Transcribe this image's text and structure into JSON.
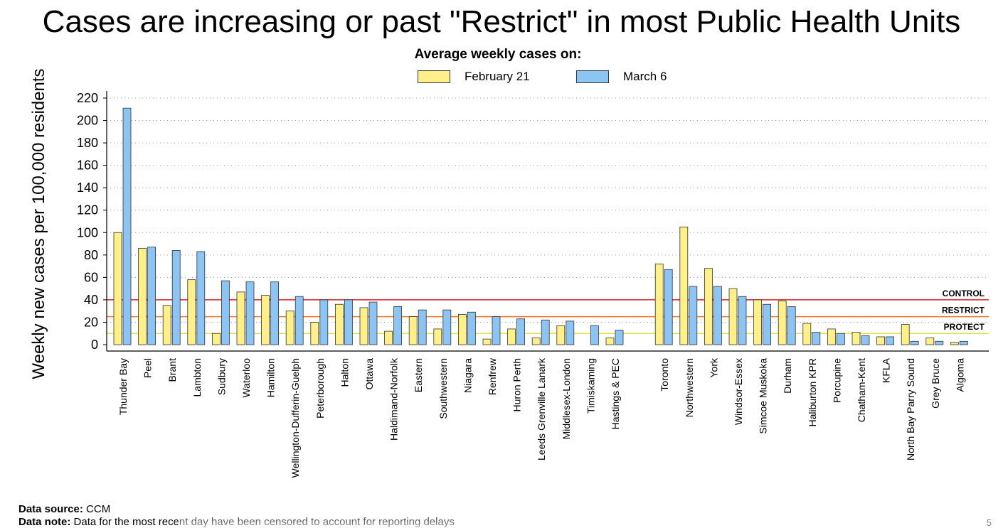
{
  "slide": {
    "title": "Cases are increasing or past \"Restrict\" in most Public Health Units",
    "page_number": "5"
  },
  "legend": {
    "title": "Average weekly cases on:",
    "items": [
      {
        "label": "February 21",
        "color": "#FFF08A"
      },
      {
        "label": "March 6",
        "color": "#8CC4F4"
      }
    ]
  },
  "footer": {
    "source_label": "Data source:",
    "source_value": "CCM",
    "note_label": "Data note:",
    "note_value": "Data for the most recent day have been censored to account for reporting delays"
  },
  "chart_data": {
    "type": "bar",
    "title": "Cases are increasing or past \"Restrict\" in most Public Health Units",
    "ylabel": "Weekly new cases per 100,000 residents",
    "xlabel": "",
    "ylim": [
      0,
      220
    ],
    "yticks": [
      0,
      20,
      40,
      60,
      80,
      100,
      120,
      140,
      160,
      180,
      200,
      220
    ],
    "grid": "dotted horizontal",
    "legend_position": "top-center",
    "categories": [
      "Thunder Bay",
      "Peel",
      "Brant",
      "Lambton",
      "Sudbury",
      "Waterloo",
      "Hamilton",
      "Wellington-Dufferin-Guelph",
      "Peterborough",
      "Halton",
      "Ottawa",
      "Haldimand-Norfolk",
      "Eastern",
      "Southwestern",
      "Niagara",
      "Renfrew",
      "Huron Perth",
      "Leeds Grenville Lanark",
      "Middlesex-London",
      "Timiskaming",
      "Hastings & PEC",
      "Toronto",
      "Northwestern",
      "York",
      "Windsor-Essex",
      "Simcoe Muskoka",
      "Durham",
      "Haliburton KPR",
      "Porcupine",
      "Chatham-Kent",
      "KFLA",
      "North Bay Parry Sound",
      "Grey Bruce",
      "Algoma"
    ],
    "series": [
      {
        "name": "February 21",
        "color": "#FFF08A",
        "values": [
          100,
          86,
          35,
          58,
          10,
          47,
          44,
          30,
          20,
          36,
          33,
          12,
          25,
          14,
          27,
          5,
          14,
          6,
          17,
          0,
          6,
          72,
          105,
          68,
          50,
          40,
          39,
          19,
          14,
          11,
          7,
          18,
          6,
          2
        ]
      },
      {
        "name": "March 6",
        "color": "#8CC4F4",
        "values": [
          211,
          87,
          84,
          83,
          57,
          56,
          56,
          43,
          40,
          40,
          38,
          34,
          31,
          31,
          29,
          25,
          23,
          22,
          21,
          17,
          13,
          67,
          52,
          52,
          43,
          36,
          34,
          11,
          10,
          8,
          7,
          3,
          3,
          3
        ]
      }
    ],
    "thresholds": [
      {
        "label": "CONTROL",
        "value": 40,
        "color": "#E02020"
      },
      {
        "label": "RESTRICT",
        "value": 25,
        "color": "#F07820"
      },
      {
        "label": "PROTECT",
        "value": 10,
        "color": "#E8E040"
      }
    ]
  }
}
